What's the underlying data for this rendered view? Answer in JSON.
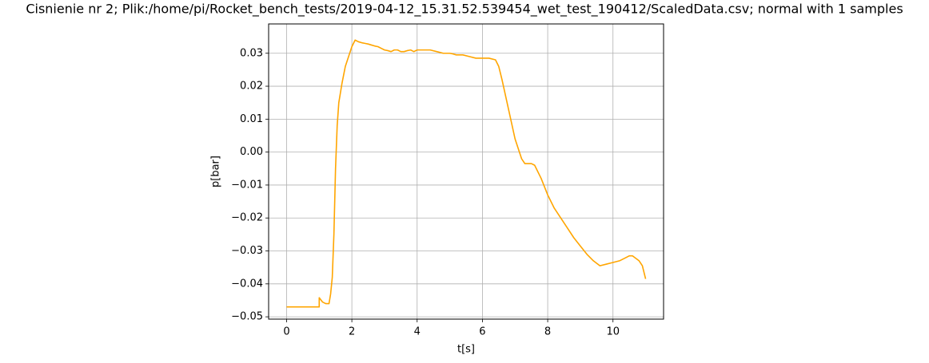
{
  "chart_data": {
    "type": "line",
    "title": "Cisnienie nr 2; Plik:/home/pi/Rocket_bench_tests/2019-04-12_15.31.52.539454_wet_test_190412/ScaledData.csv; normal with 1 samples",
    "xlabel": "t[s]",
    "ylabel": "p[bar]",
    "color": "#ffa500",
    "grid": true,
    "xlim": [
      -0.55,
      11.55
    ],
    "ylim": [
      -0.0507,
      0.0389
    ],
    "xticks": [
      0,
      2,
      4,
      6,
      8,
      10
    ],
    "yticks": [
      {
        "value": -0.05,
        "label": "−0.05"
      },
      {
        "value": -0.04,
        "label": "−0.04"
      },
      {
        "value": -0.03,
        "label": "−0.03"
      },
      {
        "value": -0.02,
        "label": "−0.02"
      },
      {
        "value": -0.01,
        "label": "−0.01"
      },
      {
        "value": 0,
        "label": "0.00"
      },
      0.01,
      0.02,
      0.03
    ],
    "x": [
      0,
      1.0,
      1.0,
      1.1,
      1.2,
      1.3,
      1.35,
      1.4,
      1.45,
      1.5,
      1.55,
      1.6,
      1.7,
      1.8,
      1.9,
      2.0,
      2.1,
      2.2,
      2.3,
      2.4,
      2.5,
      2.6,
      2.7,
      2.8,
      2.9,
      3.0,
      3.1,
      3.2,
      3.3,
      3.4,
      3.5,
      3.6,
      3.7,
      3.8,
      3.9,
      4.0,
      4.2,
      4.4,
      4.6,
      4.8,
      5.0,
      5.1,
      5.2,
      5.4,
      5.6,
      5.8,
      6.0,
      6.2,
      6.4,
      6.5,
      6.6,
      6.8,
      7.0,
      7.2,
      7.3,
      7.5,
      7.6,
      7.8,
      8.0,
      8.2,
      8.4,
      8.6,
      8.8,
      9.0,
      9.2,
      9.4,
      9.6,
      9.8,
      10.0,
      10.2,
      10.4,
      10.5,
      10.6,
      10.8,
      10.9,
      11.0
    ],
    "values": [
      -0.047,
      -0.047,
      -0.0442,
      -0.0455,
      -0.046,
      -0.046,
      -0.043,
      -0.038,
      -0.025,
      -0.005,
      0.008,
      0.015,
      0.021,
      0.026,
      0.029,
      0.032,
      0.034,
      0.0335,
      0.0332,
      0.033,
      0.0328,
      0.0325,
      0.0322,
      0.032,
      0.0315,
      0.031,
      0.0308,
      0.0305,
      0.031,
      0.031,
      0.0305,
      0.0305,
      0.0308,
      0.031,
      0.0305,
      0.031,
      0.031,
      0.031,
      0.0305,
      0.03,
      0.03,
      0.0298,
      0.0295,
      0.0295,
      0.029,
      0.0285,
      0.0285,
      0.0285,
      0.028,
      0.026,
      0.022,
      0.013,
      0.004,
      -0.002,
      -0.0035,
      -0.0035,
      -0.004,
      -0.008,
      -0.013,
      -0.017,
      -0.02,
      -0.023,
      -0.026,
      -0.0285,
      -0.031,
      -0.033,
      -0.0345,
      -0.034,
      -0.0335,
      -0.033,
      -0.032,
      -0.0315,
      -0.0315,
      -0.033,
      -0.0345,
      -0.0385
    ]
  }
}
